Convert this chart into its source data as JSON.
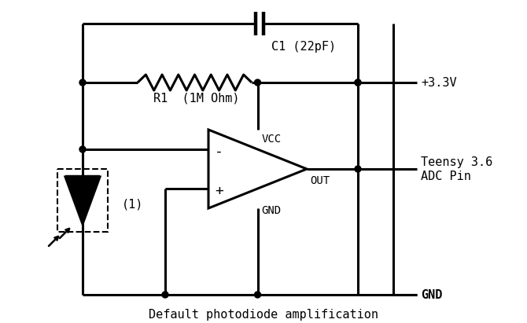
{
  "title": "Default photodiode amplification",
  "bg_color": "#ffffff",
  "line_color": "#000000",
  "line_width": 2.2,
  "font_family": "DejaVu Sans Mono",
  "labels": {
    "C1": "C1 (22pF)",
    "R1": "R1  (1M Ohm)",
    "VCC": "VCC",
    "GND": "GND",
    "OUT": "OUT",
    "minus": "-",
    "plus": "+",
    "vcc_val": "+3.3V",
    "teensy": "Teensy 3.6",
    "adc": "ADC Pin",
    "gnd_bot": "GND",
    "diode_label": "(1)"
  }
}
